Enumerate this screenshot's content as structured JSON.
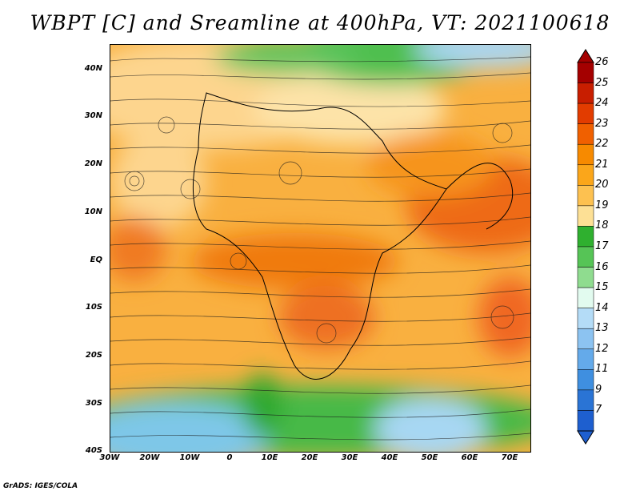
{
  "title": "WBPT [C] and Sreamline at 400hPa, VT: 2021100618",
  "credit": "GrADS: IGES/COLA",
  "map": {
    "lat_labels": [
      "40N",
      "30N",
      "20N",
      "10N",
      "EQ",
      "10S",
      "20S",
      "30S",
      "40S"
    ],
    "lon_labels": [
      "30W",
      "20W",
      "10W",
      "0",
      "10E",
      "20E",
      "30E",
      "40E",
      "50E",
      "60E",
      "70E"
    ],
    "lat_range": [
      -40,
      45
    ],
    "lon_range": [
      -30,
      75
    ]
  },
  "colorbar": {
    "labels": [
      "26",
      "25",
      "24",
      "23",
      "22",
      "21",
      "20",
      "19",
      "18",
      "17",
      "16",
      "15",
      "14",
      "13",
      "12",
      "11",
      "9",
      "7"
    ],
    "colors": [
      "#a40000",
      "#c81e00",
      "#e23c00",
      "#f06000",
      "#f78a00",
      "#fba61a",
      "#fdc150",
      "#fde095",
      "#2fb02f",
      "#56c456",
      "#8fdc8f",
      "#e2fbef",
      "#b4dcf7",
      "#8cc3f1",
      "#64aaea",
      "#3f8fe0",
      "#2a74d5",
      "#1e5fcf"
    ]
  }
}
